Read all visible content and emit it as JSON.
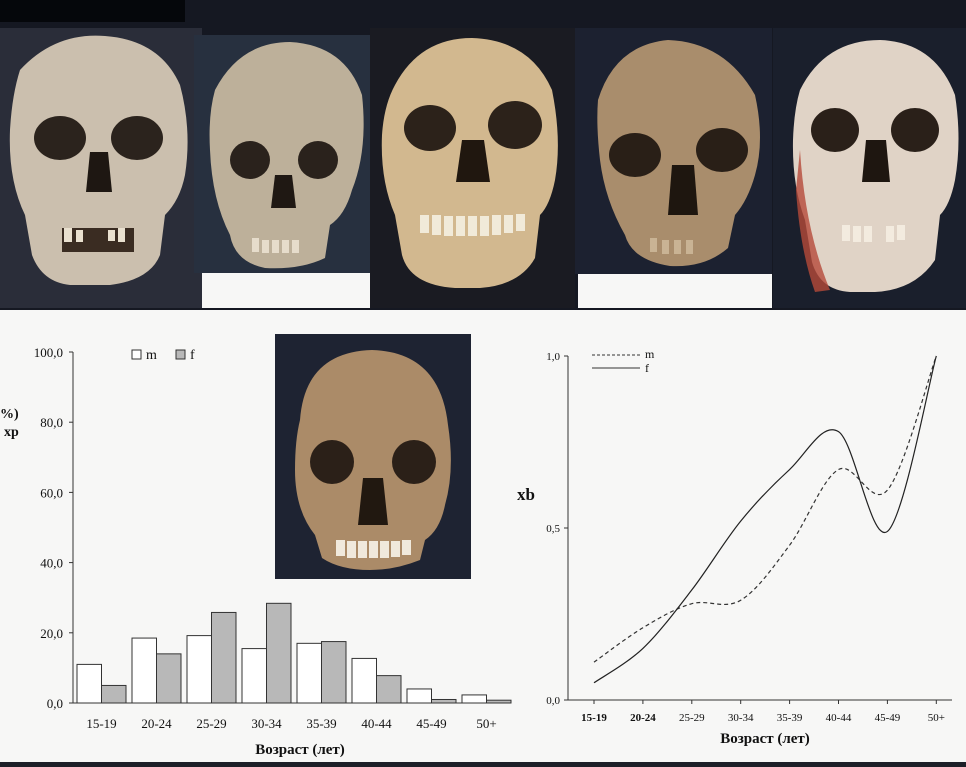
{
  "colors": {
    "background": "#151822",
    "panel": "#f7f7f6",
    "bar_m": "#ffffff",
    "bar_f": "#b8b8b8",
    "line": "#222222"
  },
  "photos": [
    {
      "name": "skull-photo-1",
      "bone_color": "#cbbfae"
    },
    {
      "name": "skull-photo-2",
      "bone_color": "#bdb09a"
    },
    {
      "name": "skull-photo-3",
      "bone_color": "#d2b88f"
    },
    {
      "name": "skull-photo-4",
      "bone_color": "#a98d6c"
    },
    {
      "name": "skull-photo-5",
      "bone_color": "#e0d3c6"
    },
    {
      "name": "skull-photo-center",
      "bone_color": "#ab8b68"
    }
  ],
  "chart_data": [
    {
      "type": "bar",
      "ylabel_line1": "%)",
      "ylabel_line2": "xp",
      "xlabel": "Возраст (лет)",
      "categories": [
        "15-19",
        "20-24",
        "25-29",
        "30-34",
        "35-39",
        "40-44",
        "45-49",
        "50+"
      ],
      "series": [
        {
          "name": "m",
          "values": [
            11.0,
            18.5,
            19.2,
            15.5,
            17.0,
            12.7,
            4.0,
            2.3
          ]
        },
        {
          "name": "f",
          "values": [
            5.0,
            14.0,
            25.8,
            28.4,
            17.5,
            7.8,
            1.0,
            0.8
          ]
        }
      ],
      "yticks": [
        "0,0",
        "20,0",
        "40,0",
        "60,0",
        "80,0",
        "100,0"
      ],
      "ylim": [
        0,
        100
      ],
      "legend": "top-left"
    },
    {
      "type": "line",
      "ylabel": "xb",
      "xlabel": "Возраст (лет)",
      "categories": [
        "15-19",
        "20-24",
        "25-29",
        "30-34",
        "35-39",
        "40-44",
        "45-49",
        "50+"
      ],
      "series": [
        {
          "name": "m",
          "style": "dashed",
          "values": [
            0.11,
            0.21,
            0.28,
            0.29,
            0.45,
            0.67,
            0.61,
            1.0
          ]
        },
        {
          "name": "f",
          "style": "solid",
          "values": [
            0.05,
            0.15,
            0.32,
            0.52,
            0.67,
            0.78,
            0.49,
            1.0
          ]
        }
      ],
      "yticks": [
        "0,0",
        "0,5",
        "1,0"
      ],
      "ylim": [
        0,
        1
      ],
      "legend": "top-left"
    }
  ]
}
